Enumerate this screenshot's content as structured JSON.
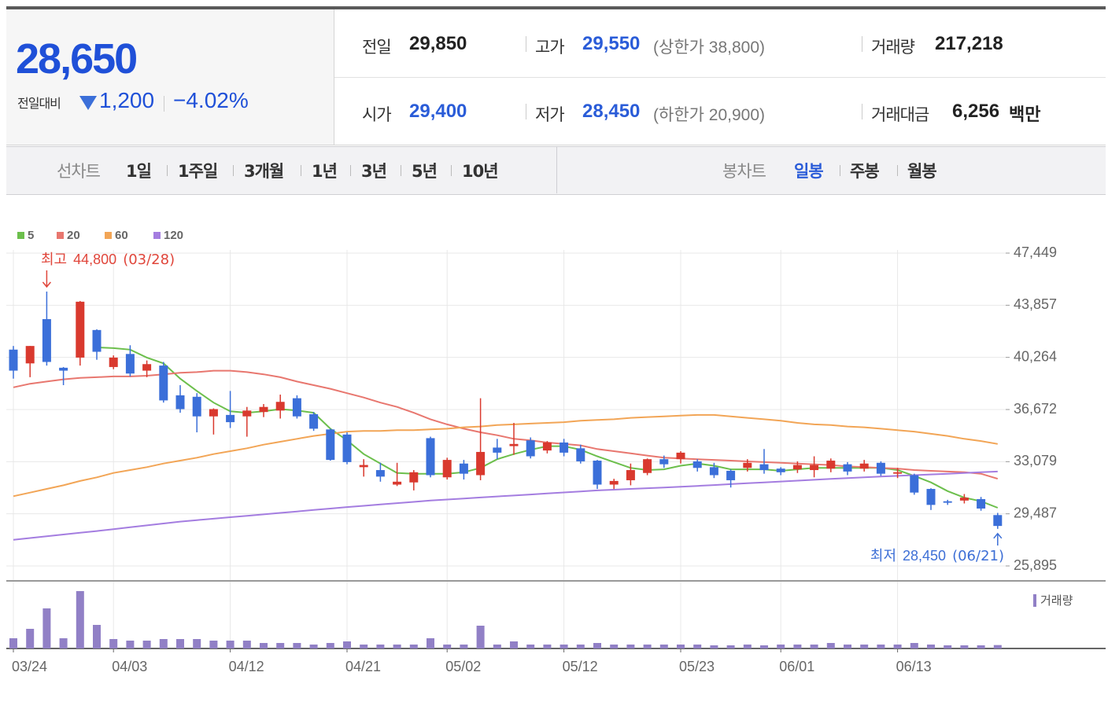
{
  "quote": {
    "price": "28,650",
    "change_label": "전일대비",
    "change": "1,200",
    "change_pct": "−4.02%"
  },
  "stats": {
    "rows": [
      [
        {
          "label": "전일",
          "value": "29,850"
        },
        {
          "label": "고가",
          "value": "29,550",
          "limit": "(상한가 38,800)"
        },
        {
          "label": "거래량",
          "value": "217,218"
        }
      ],
      [
        {
          "label": "시가",
          "value": "29,400"
        },
        {
          "label": "저가",
          "value": "28,450",
          "limit": "(하한가 20,900)"
        },
        {
          "label": "거래대금",
          "value": "6,256",
          "unit": "백만"
        }
      ]
    ]
  },
  "tabs": {
    "line_label": "선차트",
    "line_options": [
      "1일",
      "1주일",
      "3개월",
      "1년",
      "3년",
      "5년",
      "10년"
    ],
    "candle_label": "봉차트",
    "candle_options": [
      "일봉",
      "주봉",
      "월봉"
    ],
    "active": "일봉"
  },
  "chart_data": {
    "type": "candlestick",
    "categories": [
      "03/24",
      null,
      null,
      null,
      null,
      null,
      "04/03",
      null,
      null,
      null,
      null,
      null,
      null,
      "04/12",
      null,
      null,
      null,
      null,
      null,
      null,
      "04/21",
      null,
      null,
      null,
      null,
      null,
      "05/02",
      null,
      null,
      null,
      null,
      null,
      null,
      "05/12",
      null,
      null,
      null,
      null,
      null,
      null,
      "05/23",
      null,
      null,
      null,
      null,
      null,
      "06/01",
      null,
      null,
      null,
      null,
      null,
      null,
      "06/13",
      null,
      null,
      null,
      null,
      null,
      null
    ],
    "open": [
      40800,
      39850,
      42900,
      39550,
      40250,
      42150,
      39600,
      40500,
      39350,
      39700,
      37650,
      37550,
      36200,
      36300,
      36200,
      36500,
      36600,
      37450,
      36350,
      35300,
      34950,
      32700,
      32500,
      31500,
      31650,
      34700,
      32000,
      32950,
      32150,
      34050,
      34150,
      34550,
      33850,
      34400,
      34000,
      33150,
      31500,
      31800,
      32300,
      33250,
      33250,
      33100,
      32700,
      32450,
      32650,
      32900,
      32600,
      32550,
      32500,
      32600,
      32900,
      32600,
      33000,
      32250,
      32150,
      31200,
      30350,
      30400,
      30500,
      29400
    ],
    "high": [
      41050,
      41050,
      44800,
      39600,
      44150,
      42200,
      40400,
      41100,
      40050,
      39950,
      38350,
      37800,
      36750,
      37950,
      36850,
      37050,
      37700,
      37650,
      36500,
      35350,
      35100,
      33250,
      33000,
      33000,
      32500,
      34800,
      33350,
      33200,
      37450,
      34650,
      35750,
      34750,
      34500,
      34650,
      34250,
      33200,
      31900,
      32950,
      33300,
      33500,
      33800,
      33250,
      33000,
      32550,
      33250,
      33950,
      32700,
      33100,
      33450,
      33300,
      33050,
      33200,
      33100,
      32650,
      32250,
      31250,
      30450,
      30850,
      30650,
      29550
    ],
    "low": [
      38800,
      38900,
      39700,
      38350,
      39700,
      40100,
      39450,
      38950,
      38900,
      37150,
      36450,
      35100,
      34950,
      35400,
      34800,
      36150,
      36050,
      36050,
      35200,
      33150,
      32900,
      32050,
      31700,
      31400,
      31100,
      32000,
      31850,
      31850,
      31800,
      33250,
      33550,
      33300,
      33650,
      33450,
      32950,
      31200,
      31200,
      31450,
      32150,
      32650,
      32950,
      32400,
      31950,
      31300,
      32400,
      32250,
      32150,
      32300,
      32000,
      32350,
      32150,
      32400,
      32100,
      31950,
      30800,
      29750,
      30100,
      30200,
      29700,
      28450
    ],
    "close": [
      39350,
      41050,
      39950,
      39350,
      44100,
      40650,
      40250,
      39150,
      39800,
      37300,
      36700,
      36200,
      36700,
      35800,
      36600,
      36850,
      37200,
      36200,
      35350,
      33200,
      33050,
      32850,
      32050,
      31700,
      32350,
      32150,
      33200,
      32250,
      33750,
      33700,
      34300,
      33450,
      34400,
      33700,
      33100,
      31500,
      31750,
      32500,
      33250,
      32900,
      33700,
      32650,
      32150,
      31800,
      33000,
      32500,
      32350,
      32850,
      32850,
      33150,
      32400,
      32950,
      32250,
      32350,
      30950,
      30100,
      30250,
      30600,
      29850,
      28650
    ],
    "up_color": "#d9392e",
    "down_color": "#3b6fd9",
    "moving_averages": [
      {
        "name": "5",
        "color": "#6cbf4c",
        "values": [
          null,
          null,
          null,
          null,
          null,
          40950,
          40900,
          40800,
          40250,
          39850,
          38800,
          37950,
          37150,
          36550,
          36450,
          36550,
          36700,
          36600,
          36450,
          35350,
          34550,
          33600,
          32950,
          32300,
          32250,
          32250,
          32250,
          32350,
          32650,
          33250,
          33600,
          33900,
          34150,
          34150,
          33900,
          33450,
          33050,
          32650,
          32500,
          32550,
          32800,
          32950,
          32800,
          32550,
          32550,
          32550,
          32450,
          32550,
          32650,
          32650,
          32650,
          32650,
          32650,
          32500,
          32100,
          31650,
          31050,
          30600,
          30350,
          29900
        ]
      },
      {
        "name": "20",
        "color": "#e8776f",
        "values": [
          38200,
          38450,
          38600,
          38750,
          38850,
          38900,
          38950,
          38950,
          39000,
          39100,
          39200,
          39250,
          39350,
          39350,
          39250,
          39100,
          38900,
          38600,
          38350,
          38100,
          37800,
          37500,
          37150,
          36850,
          36450,
          36000,
          35650,
          35350,
          35100,
          34900,
          34650,
          34550,
          34400,
          34300,
          34200,
          33950,
          33800,
          33650,
          33500,
          33350,
          33300,
          33250,
          33200,
          33150,
          33100,
          33050,
          33000,
          32950,
          32900,
          32850,
          32750,
          32700,
          32650,
          32600,
          32500,
          32450,
          32400,
          32350,
          32250,
          31900
        ]
      },
      {
        "name": "60",
        "color": "#f2a556",
        "values": [
          30700,
          30950,
          31200,
          31450,
          31750,
          32000,
          32300,
          32500,
          32700,
          32950,
          33150,
          33350,
          33600,
          33800,
          34000,
          34250,
          34450,
          34650,
          34850,
          35000,
          35150,
          35200,
          35200,
          35250,
          35250,
          35300,
          35350,
          35450,
          35500,
          35600,
          35650,
          35700,
          35750,
          35800,
          35900,
          35950,
          36000,
          36100,
          36150,
          36200,
          36250,
          36300,
          36300,
          36200,
          36100,
          36000,
          35900,
          35750,
          35650,
          35600,
          35500,
          35450,
          35350,
          35250,
          35150,
          35000,
          34850,
          34650,
          34500,
          34300
        ]
      },
      {
        "name": "120",
        "color": "#a47de0",
        "values": [
          27700,
          27820,
          27940,
          28060,
          28180,
          28300,
          28430,
          28560,
          28690,
          28820,
          28950,
          29050,
          29150,
          29250,
          29350,
          29450,
          29550,
          29650,
          29750,
          29850,
          29950,
          30040,
          30130,
          30220,
          30310,
          30400,
          30470,
          30540,
          30610,
          30680,
          30750,
          30820,
          30890,
          30960,
          31030,
          31100,
          31150,
          31200,
          31250,
          31300,
          31350,
          31410,
          31470,
          31530,
          31590,
          31650,
          31710,
          31770,
          31830,
          31890,
          31950,
          32000,
          32050,
          32100,
          32150,
          32200,
          32250,
          32300,
          32350,
          32400
        ]
      }
    ],
    "volume": {
      "name": "거래량",
      "color": "#9180c6",
      "ylim": [
        0,
        4000000
      ],
      "values": [
        650000,
        1250000,
        2550000,
        650000,
        3650000,
        1500000,
        600000,
        500000,
        500000,
        600000,
        600000,
        600000,
        500000,
        500000,
        500000,
        350000,
        350000,
        350000,
        250000,
        350000,
        450000,
        250000,
        250000,
        250000,
        250000,
        650000,
        250000,
        250000,
        1450000,
        250000,
        450000,
        250000,
        250000,
        250000,
        250000,
        350000,
        250000,
        250000,
        250000,
        250000,
        250000,
        250000,
        200000,
        200000,
        250000,
        200000,
        250000,
        250000,
        250000,
        350000,
        250000,
        250000,
        250000,
        250000,
        350000,
        250000,
        200000,
        200000,
        200000,
        217218
      ]
    },
    "ylim": [
      25895,
      47449
    ],
    "yticks": [
      {
        "value": 25895,
        "label": "25,895"
      },
      {
        "value": 29487,
        "label": "29,487"
      },
      {
        "value": 33079,
        "label": "33,079"
      },
      {
        "value": 36672,
        "label": "36,672"
      },
      {
        "value": 40264,
        "label": "40,264"
      },
      {
        "value": 43857,
        "label": "43,857"
      },
      {
        "value": 47449,
        "label": "47,449"
      }
    ],
    "grid": true,
    "high_annotation": {
      "label": "최고",
      "value": 44800,
      "value_label": "44,800",
      "date": "(03/28)",
      "color": "#e0463b"
    },
    "low_annotation": {
      "label": "최저",
      "value": 28450,
      "value_label": "28,450",
      "date": "(06/21)",
      "color": "#3d6fd6"
    }
  }
}
